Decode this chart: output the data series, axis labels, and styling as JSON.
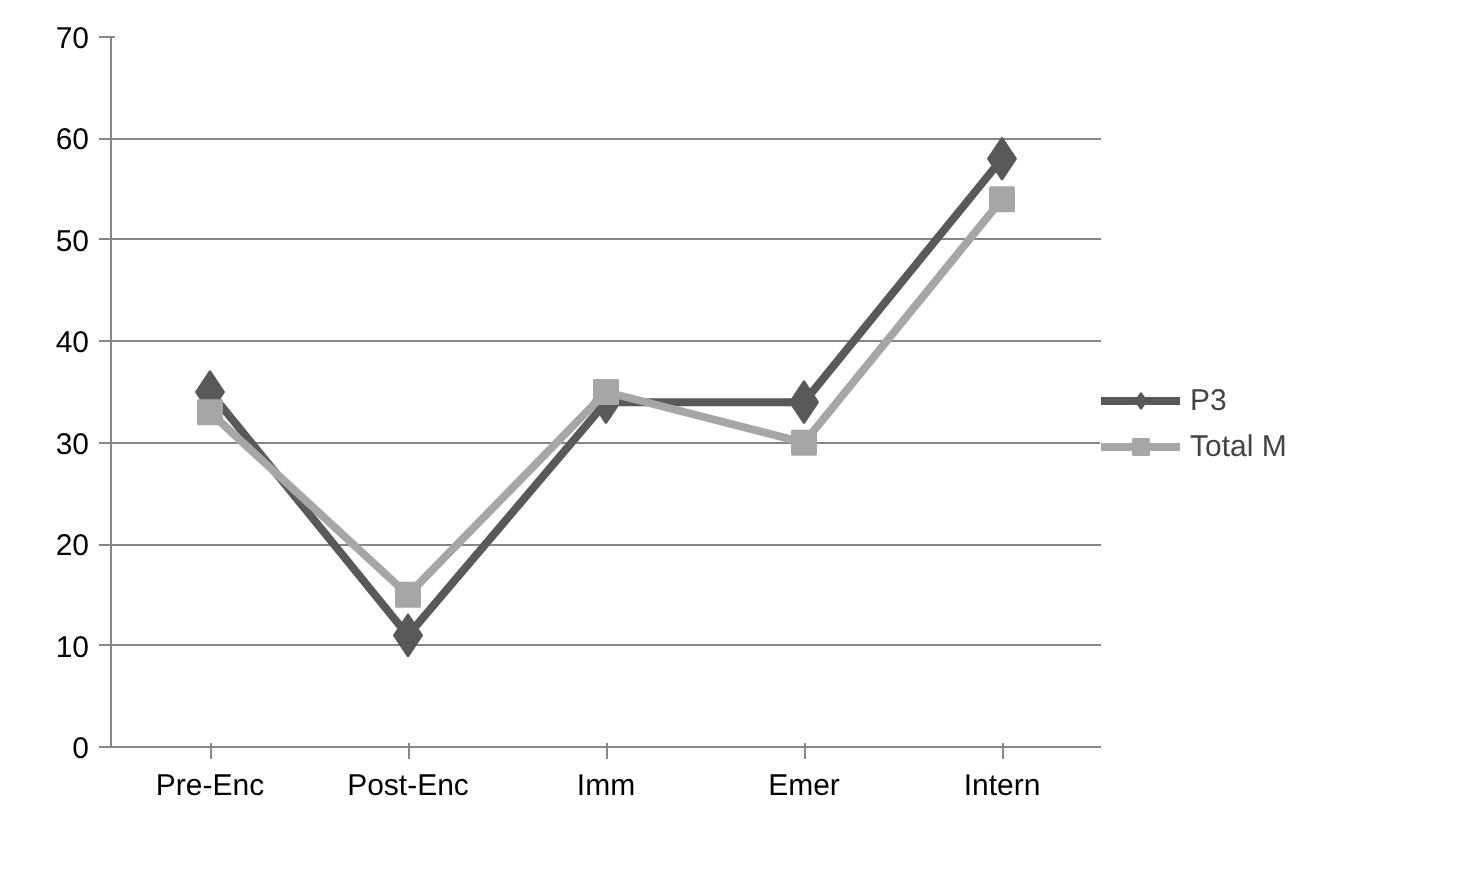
{
  "chart_data": {
    "type": "line",
    "categories": [
      "Pre-Enc",
      "Post-Enc",
      "Imm",
      "Emer",
      "Intern"
    ],
    "series": [
      {
        "name": "P3",
        "color": "#595959",
        "marker": "diamond",
        "values": [
          35,
          11,
          34,
          34,
          58
        ]
      },
      {
        "name": "Total M",
        "color": "#a6a6a6",
        "marker": "square",
        "values": [
          33,
          15,
          35,
          30,
          54
        ]
      }
    ],
    "ylim": [
      0,
      70
    ],
    "yticks": [
      0,
      10,
      20,
      30,
      40,
      50,
      60,
      70
    ],
    "grid": "y",
    "legend": "right",
    "line_style": "solid"
  }
}
